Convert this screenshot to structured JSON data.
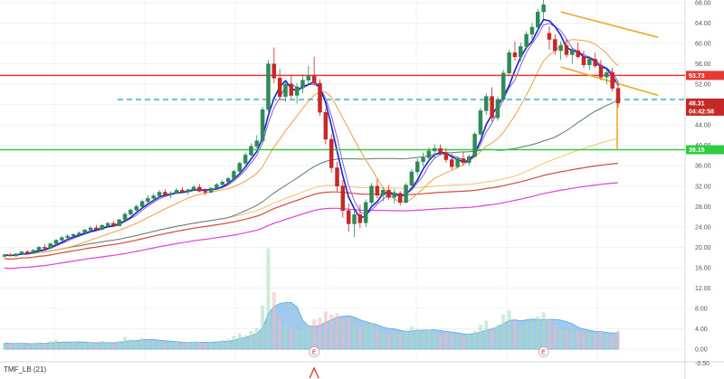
{
  "indicator_label": "TMF_LB (21)",
  "colors": {
    "up": "#2e8b57",
    "down": "#c62828",
    "ma_fast": "#1a23c9",
    "ma_violet": "#8a5fd1",
    "ma_orange": "#f0a040",
    "ma_dark": "#5f7a74",
    "ma_gold": "#f2c26b",
    "ma_red": "#d84a3a",
    "ma_magenta": "#e040e0",
    "resistance": "#e53935",
    "support": "#2ecc40",
    "dashed": "#29a9c9",
    "channel": "#f5a623",
    "volume_area": "#7fb8e8",
    "volume_bar": "#a8dcb8"
  },
  "price_tags": [
    {
      "text": "53.73",
      "value": 53.73,
      "color": "#e53935"
    },
    {
      "text": "48.31",
      "value": 48.31,
      "color": "#c62828"
    },
    {
      "text": "04:42:58",
      "value": 45.9,
      "color": "#c62828"
    },
    {
      "text": "39.15",
      "value": 39.15,
      "color": "#2ecc40"
    }
  ],
  "earnings_markers": [
    {
      "text": "E",
      "index": 54
    },
    {
      "text": "E",
      "index": 94
    }
  ],
  "chart_data": {
    "type": "candlestick",
    "price_axis": {
      "ticks": [
        "68.00",
        "64.00",
        "60.00",
        "56.00",
        "52.00",
        "48.00",
        "44.00",
        "40.00",
        "36.00",
        "32.00",
        "28.00",
        "24.00",
        "20.00",
        "16.00",
        "12.00",
        "8.00",
        "4.00",
        "0.00",
        "-0.50"
      ],
      "tick_values": [
        68,
        64,
        60,
        56,
        52,
        48,
        44,
        40,
        36,
        32,
        28,
        24,
        20,
        16,
        12,
        8,
        4,
        0,
        -0.5
      ]
    },
    "horizontal_levels": [
      {
        "name": "resistance",
        "value": 53.73
      },
      {
        "name": "dashed",
        "value": 49.0
      },
      {
        "name": "support",
        "value": 39.15
      }
    ],
    "channel": {
      "upper": [
        [
          97,
          66.2
        ],
        [
          114,
          61.2
        ]
      ],
      "lower": [
        [
          97,
          55.4
        ],
        [
          114,
          49.8
        ]
      ]
    },
    "candles": [
      [
        18.2,
        18.6,
        18.0,
        18.5
      ],
      [
        18.5,
        18.9,
        18.2,
        18.3
      ],
      [
        18.3,
        18.8,
        18.1,
        18.7
      ],
      [
        18.7,
        19.3,
        18.5,
        19.1
      ],
      [
        19.1,
        19.5,
        18.6,
        18.8
      ],
      [
        18.8,
        19.6,
        18.7,
        19.4
      ],
      [
        19.4,
        20.2,
        19.2,
        20.0
      ],
      [
        20.0,
        20.6,
        19.6,
        19.8
      ],
      [
        19.8,
        20.9,
        19.7,
        20.7
      ],
      [
        20.7,
        21.6,
        20.5,
        21.4
      ],
      [
        21.4,
        22.2,
        21.0,
        21.9
      ],
      [
        21.9,
        22.6,
        21.5,
        22.2
      ],
      [
        22.2,
        22.8,
        21.8,
        22.5
      ],
      [
        22.5,
        23.1,
        22.0,
        22.8
      ],
      [
        22.8,
        23.6,
        22.5,
        23.4
      ],
      [
        23.4,
        24.1,
        23.0,
        23.8
      ],
      [
        23.8,
        24.4,
        23.2,
        23.5
      ],
      [
        23.5,
        24.6,
        23.3,
        24.3
      ],
      [
        24.3,
        25.0,
        23.9,
        24.7
      ],
      [
        24.7,
        25.2,
        24.0,
        24.2
      ],
      [
        24.2,
        25.6,
        24.1,
        25.4
      ],
      [
        25.4,
        26.8,
        25.1,
        26.5
      ],
      [
        26.5,
        27.6,
        26.2,
        27.3
      ],
      [
        27.3,
        28.4,
        27.0,
        28.0
      ],
      [
        28.0,
        29.4,
        27.8,
        29.0
      ],
      [
        29.0,
        30.2,
        28.6,
        29.6
      ],
      [
        29.6,
        30.6,
        29.0,
        30.1
      ],
      [
        30.1,
        31.2,
        29.8,
        30.8
      ],
      [
        30.8,
        31.4,
        30.0,
        30.3
      ],
      [
        30.3,
        31.0,
        29.6,
        30.6
      ],
      [
        30.6,
        31.6,
        30.4,
        31.2
      ],
      [
        31.2,
        31.8,
        30.6,
        30.9
      ],
      [
        30.9,
        31.5,
        30.3,
        31.3
      ],
      [
        31.3,
        32.2,
        31.0,
        31.8
      ],
      [
        31.8,
        32.4,
        30.8,
        31.0
      ],
      [
        31.0,
        31.6,
        30.2,
        30.8
      ],
      [
        30.8,
        31.8,
        30.6,
        31.6
      ],
      [
        31.6,
        32.6,
        31.4,
        32.3
      ],
      [
        32.3,
        33.2,
        31.9,
        32.8
      ],
      [
        32.8,
        33.8,
        32.6,
        33.5
      ],
      [
        33.5,
        35.2,
        33.2,
        34.9
      ],
      [
        34.9,
        36.8,
        34.6,
        36.5
      ],
      [
        36.5,
        38.6,
        36.2,
        38.1
      ],
      [
        38.1,
        40.4,
        37.8,
        39.8
      ],
      [
        39.8,
        42.0,
        39.4,
        40.9
      ],
      [
        40.9,
        47.6,
        40.6,
        47.0
      ],
      [
        47.0,
        56.8,
        46.5,
        56.0
      ],
      [
        56.0,
        59.2,
        52.2,
        53.2
      ],
      [
        53.2,
        55.0,
        48.8,
        49.6
      ],
      [
        49.6,
        52.6,
        48.6,
        52.0
      ],
      [
        52.0,
        53.8,
        49.2,
        49.8
      ],
      [
        49.8,
        52.2,
        48.2,
        51.5
      ],
      [
        51.5,
        54.0,
        50.2,
        52.8
      ],
      [
        52.8,
        55.6,
        51.6,
        53.6
      ],
      [
        53.6,
        57.4,
        51.8,
        52.2
      ],
      [
        52.2,
        53.0,
        45.8,
        46.5
      ],
      [
        46.5,
        47.2,
        40.2,
        41.2
      ],
      [
        41.2,
        42.2,
        34.6,
        35.6
      ],
      [
        35.6,
        36.8,
        31.0,
        32.0
      ],
      [
        32.0,
        33.2,
        25.8,
        27.2
      ],
      [
        27.2,
        28.6,
        23.0,
        24.6
      ],
      [
        24.6,
        27.2,
        22.0,
        26.4
      ],
      [
        26.4,
        28.4,
        23.8,
        24.8
      ],
      [
        24.8,
        29.4,
        24.0,
        28.8
      ],
      [
        28.8,
        32.6,
        28.4,
        32.0
      ],
      [
        32.0,
        33.4,
        29.6,
        30.2
      ],
      [
        30.2,
        31.8,
        29.0,
        31.2
      ],
      [
        31.2,
        32.2,
        29.4,
        29.8
      ],
      [
        29.8,
        31.4,
        28.6,
        30.6
      ],
      [
        30.6,
        31.0,
        28.2,
        28.8
      ],
      [
        28.8,
        32.6,
        28.6,
        32.2
      ],
      [
        32.2,
        35.4,
        32.0,
        34.8
      ],
      [
        34.8,
        37.4,
        34.2,
        36.8
      ],
      [
        36.8,
        38.6,
        35.8,
        37.6
      ],
      [
        37.6,
        39.6,
        36.8,
        38.9
      ],
      [
        38.9,
        40.2,
        37.6,
        39.4
      ],
      [
        39.4,
        40.2,
        38.0,
        38.6
      ],
      [
        38.6,
        39.4,
        36.6,
        37.2
      ],
      [
        37.2,
        38.4,
        35.2,
        35.8
      ],
      [
        35.8,
        37.8,
        35.4,
        37.4
      ],
      [
        37.4,
        38.8,
        36.0,
        36.6
      ],
      [
        36.6,
        38.2,
        36.0,
        37.8
      ],
      [
        37.8,
        42.6,
        37.6,
        42.2
      ],
      [
        42.2,
        47.4,
        41.8,
        46.8
      ],
      [
        46.8,
        50.2,
        46.0,
        49.6
      ],
      [
        49.6,
        51.4,
        44.6,
        45.4
      ],
      [
        45.4,
        49.6,
        44.8,
        49.0
      ],
      [
        49.0,
        54.8,
        48.6,
        54.2
      ],
      [
        54.2,
        58.8,
        53.8,
        58.2
      ],
      [
        58.2,
        60.4,
        56.6,
        57.4
      ],
      [
        57.4,
        60.2,
        56.4,
        59.4
      ],
      [
        59.4,
        62.4,
        58.8,
        61.8
      ],
      [
        61.8,
        64.0,
        60.6,
        63.2
      ],
      [
        63.2,
        66.8,
        62.6,
        66.2
      ],
      [
        66.2,
        69.2,
        64.8,
        67.6
      ],
      [
        62.0,
        63.4,
        58.8,
        60.8
      ],
      [
        60.8,
        61.8,
        57.8,
        58.6
      ],
      [
        58.6,
        60.4,
        56.8,
        59.6
      ],
      [
        59.6,
        60.8,
        57.2,
        57.8
      ],
      [
        57.8,
        59.2,
        56.0,
        58.6
      ],
      [
        58.6,
        60.2,
        57.0,
        57.4
      ],
      [
        57.4,
        58.6,
        55.2,
        55.8
      ],
      [
        55.8,
        57.6,
        54.8,
        56.9
      ],
      [
        56.9,
        58.2,
        55.2,
        55.6
      ],
      [
        55.6,
        56.8,
        52.8,
        53.4
      ],
      [
        53.4,
        55.0,
        52.0,
        54.3
      ],
      [
        54.3,
        55.2,
        50.6,
        51.2
      ],
      [
        51.2,
        52.6,
        47.4,
        48.31
      ]
    ],
    "volume": [
      1.2,
      1.0,
      1.1,
      1.3,
      0.9,
      1.0,
      1.4,
      1.1,
      1.6,
      1.8,
      1.3,
      1.2,
      1.5,
      1.1,
      1.3,
      1.4,
      1.0,
      1.6,
      1.2,
      1.1,
      1.7,
      2.4,
      1.9,
      1.6,
      2.2,
      1.8,
      1.5,
      1.4,
      1.3,
      1.2,
      1.6,
      1.1,
      1.3,
      1.5,
      1.4,
      1.2,
      1.3,
      1.6,
      1.8,
      2.0,
      2.6,
      3.1,
      2.8,
      3.6,
      4.2,
      8.6,
      19.8,
      11.2,
      6.4,
      4.8,
      4.2,
      3.6,
      3.9,
      4.4,
      5.8,
      6.2,
      7.4,
      6.8,
      7.0,
      5.6,
      6.2,
      4.8,
      4.2,
      4.6,
      5.2,
      3.8,
      3.4,
      3.2,
      3.6,
      3.0,
      3.8,
      4.4,
      4.0,
      3.6,
      3.8,
      3.2,
      2.9,
      3.4,
      3.1,
      2.8,
      2.6,
      3.0,
      3.6,
      4.8,
      5.6,
      4.2,
      4.8,
      6.8,
      7.6,
      5.4,
      4.6,
      5.2,
      5.8,
      6.4,
      7.2,
      5.8,
      4.8,
      4.2,
      3.8,
      4.0,
      3.4,
      3.6,
      3.2,
      3.0,
      3.4,
      3.1,
      2.8,
      3.6
    ]
  }
}
